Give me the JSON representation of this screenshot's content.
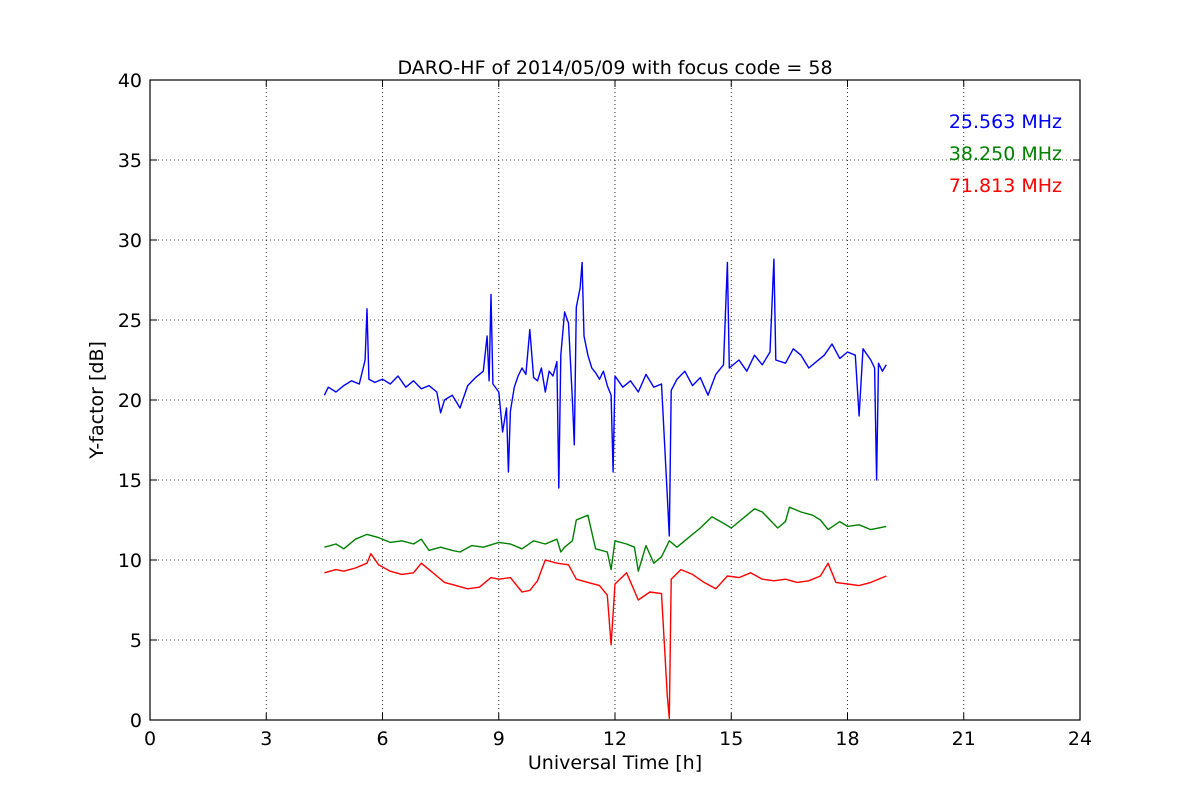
{
  "chart_data": {
    "type": "line",
    "title": "DARO-HF of 2014/05/09 with focus code = 58",
    "xlabel": "Universal Time [h]",
    "ylabel": "Y-factor [dB]",
    "xlim": [
      0,
      24
    ],
    "ylim": [
      0,
      40
    ],
    "xticks": [
      0,
      3,
      6,
      9,
      12,
      15,
      18,
      21,
      24
    ],
    "yticks": [
      0,
      5,
      10,
      15,
      20,
      25,
      30,
      35,
      40
    ],
    "grid": true,
    "legend_position": "top-right",
    "series": [
      {
        "name": "25.563 MHz",
        "color": "#0000ff",
        "points": [
          [
            4.5,
            20.3
          ],
          [
            4.6,
            20.8
          ],
          [
            4.8,
            20.5
          ],
          [
            5.0,
            20.9
          ],
          [
            5.2,
            21.2
          ],
          [
            5.4,
            21.0
          ],
          [
            5.55,
            22.5
          ],
          [
            5.6,
            25.7
          ],
          [
            5.65,
            21.3
          ],
          [
            5.8,
            21.1
          ],
          [
            6.0,
            21.3
          ],
          [
            6.2,
            21.0
          ],
          [
            6.4,
            21.5
          ],
          [
            6.6,
            20.8
          ],
          [
            6.8,
            21.2
          ],
          [
            7.0,
            20.7
          ],
          [
            7.2,
            20.9
          ],
          [
            7.4,
            20.5
          ],
          [
            7.5,
            19.2
          ],
          [
            7.6,
            20.0
          ],
          [
            7.8,
            20.3
          ],
          [
            8.0,
            19.5
          ],
          [
            8.2,
            20.9
          ],
          [
            8.4,
            21.4
          ],
          [
            8.6,
            21.8
          ],
          [
            8.7,
            24.0
          ],
          [
            8.75,
            21.2
          ],
          [
            8.8,
            26.6
          ],
          [
            8.85,
            21.0
          ],
          [
            9.0,
            20.5
          ],
          [
            9.1,
            18.0
          ],
          [
            9.2,
            19.5
          ],
          [
            9.25,
            15.5
          ],
          [
            9.3,
            19.3
          ],
          [
            9.4,
            20.8
          ],
          [
            9.5,
            21.5
          ],
          [
            9.6,
            22.0
          ],
          [
            9.7,
            21.6
          ],
          [
            9.8,
            24.4
          ],
          [
            9.9,
            21.4
          ],
          [
            10.0,
            21.2
          ],
          [
            10.1,
            22.0
          ],
          [
            10.2,
            20.5
          ],
          [
            10.3,
            21.8
          ],
          [
            10.4,
            21.5
          ],
          [
            10.5,
            22.4
          ],
          [
            10.55,
            14.5
          ],
          [
            10.6,
            22.8
          ],
          [
            10.7,
            25.5
          ],
          [
            10.8,
            24.8
          ],
          [
            10.9,
            20.0
          ],
          [
            10.95,
            17.2
          ],
          [
            11.0,
            25.8
          ],
          [
            11.1,
            27.0
          ],
          [
            11.15,
            28.6
          ],
          [
            11.2,
            24.0
          ],
          [
            11.3,
            22.8
          ],
          [
            11.4,
            22.0
          ],
          [
            11.5,
            21.7
          ],
          [
            11.6,
            21.3
          ],
          [
            11.7,
            21.8
          ],
          [
            11.8,
            20.9
          ],
          [
            11.9,
            20.3
          ],
          [
            11.95,
            15.5
          ],
          [
            12.0,
            21.5
          ],
          [
            12.2,
            20.8
          ],
          [
            12.4,
            21.2
          ],
          [
            12.6,
            20.5
          ],
          [
            12.8,
            21.6
          ],
          [
            13.0,
            20.8
          ],
          [
            13.2,
            21.0
          ],
          [
            13.35,
            14.0
          ],
          [
            13.4,
            11.5
          ],
          [
            13.45,
            20.6
          ],
          [
            13.6,
            21.3
          ],
          [
            13.8,
            21.8
          ],
          [
            14.0,
            20.9
          ],
          [
            14.2,
            21.4
          ],
          [
            14.4,
            20.3
          ],
          [
            14.6,
            21.6
          ],
          [
            14.8,
            22.2
          ],
          [
            14.9,
            28.6
          ],
          [
            14.95,
            22.0
          ],
          [
            15.2,
            22.5
          ],
          [
            15.4,
            21.8
          ],
          [
            15.6,
            22.8
          ],
          [
            15.8,
            22.2
          ],
          [
            16.0,
            23.0
          ],
          [
            16.1,
            28.8
          ],
          [
            16.15,
            22.5
          ],
          [
            16.4,
            22.3
          ],
          [
            16.6,
            23.2
          ],
          [
            16.8,
            22.8
          ],
          [
            17.0,
            22.0
          ],
          [
            17.2,
            22.4
          ],
          [
            17.4,
            22.8
          ],
          [
            17.6,
            23.5
          ],
          [
            17.8,
            22.6
          ],
          [
            18.0,
            23.0
          ],
          [
            18.2,
            22.8
          ],
          [
            18.3,
            19.0
          ],
          [
            18.4,
            23.2
          ],
          [
            18.6,
            22.5
          ],
          [
            18.7,
            22.0
          ],
          [
            18.75,
            15.0
          ],
          [
            18.8,
            22.3
          ],
          [
            18.9,
            21.8
          ],
          [
            19.0,
            22.2
          ]
        ]
      },
      {
        "name": "38.250 MHz",
        "color": "#008000",
        "points": [
          [
            4.5,
            10.8
          ],
          [
            4.8,
            11.0
          ],
          [
            5.0,
            10.7
          ],
          [
            5.3,
            11.3
          ],
          [
            5.6,
            11.6
          ],
          [
            5.9,
            11.4
          ],
          [
            6.2,
            11.1
          ],
          [
            6.5,
            11.2
          ],
          [
            6.8,
            11.0
          ],
          [
            7.0,
            11.3
          ],
          [
            7.2,
            10.6
          ],
          [
            7.5,
            10.8
          ],
          [
            7.8,
            10.6
          ],
          [
            8.0,
            10.5
          ],
          [
            8.3,
            10.9
          ],
          [
            8.6,
            10.8
          ],
          [
            9.0,
            11.1
          ],
          [
            9.3,
            11.0
          ],
          [
            9.6,
            10.7
          ],
          [
            9.9,
            11.2
          ],
          [
            10.2,
            11.0
          ],
          [
            10.5,
            11.3
          ],
          [
            10.6,
            10.5
          ],
          [
            10.7,
            10.8
          ],
          [
            10.9,
            11.2
          ],
          [
            11.0,
            12.5
          ],
          [
            11.3,
            12.8
          ],
          [
            11.5,
            10.7
          ],
          [
            11.8,
            10.5
          ],
          [
            11.9,
            9.4
          ],
          [
            12.0,
            11.2
          ],
          [
            12.3,
            11.0
          ],
          [
            12.5,
            10.8
          ],
          [
            12.6,
            9.3
          ],
          [
            12.8,
            10.9
          ],
          [
            13.0,
            9.8
          ],
          [
            13.2,
            10.2
          ],
          [
            13.4,
            11.2
          ],
          [
            13.6,
            10.8
          ],
          [
            13.9,
            11.4
          ],
          [
            14.2,
            12.0
          ],
          [
            14.5,
            12.7
          ],
          [
            14.8,
            12.3
          ],
          [
            15.0,
            12.0
          ],
          [
            15.3,
            12.6
          ],
          [
            15.6,
            13.2
          ],
          [
            15.8,
            13.0
          ],
          [
            16.0,
            12.5
          ],
          [
            16.2,
            12.0
          ],
          [
            16.4,
            12.4
          ],
          [
            16.5,
            13.3
          ],
          [
            16.8,
            13.0
          ],
          [
            17.1,
            12.8
          ],
          [
            17.3,
            12.5
          ],
          [
            17.5,
            11.9
          ],
          [
            17.8,
            12.4
          ],
          [
            18.0,
            12.1
          ],
          [
            18.3,
            12.2
          ],
          [
            18.6,
            11.9
          ],
          [
            19.0,
            12.1
          ]
        ]
      },
      {
        "name": "71.813 MHz",
        "color": "#ff0000",
        "points": [
          [
            4.5,
            9.2
          ],
          [
            4.8,
            9.4
          ],
          [
            5.0,
            9.3
          ],
          [
            5.3,
            9.5
          ],
          [
            5.6,
            9.8
          ],
          [
            5.7,
            10.4
          ],
          [
            5.9,
            9.7
          ],
          [
            6.2,
            9.3
          ],
          [
            6.5,
            9.1
          ],
          [
            6.8,
            9.2
          ],
          [
            7.0,
            9.8
          ],
          [
            7.2,
            9.4
          ],
          [
            7.4,
            9.0
          ],
          [
            7.6,
            8.6
          ],
          [
            7.9,
            8.4
          ],
          [
            8.2,
            8.2
          ],
          [
            8.5,
            8.3
          ],
          [
            8.8,
            8.9
          ],
          [
            9.0,
            8.8
          ],
          [
            9.3,
            8.9
          ],
          [
            9.6,
            8.0
          ],
          [
            9.8,
            8.1
          ],
          [
            10.0,
            8.7
          ],
          [
            10.2,
            10.0
          ],
          [
            10.5,
            9.8
          ],
          [
            10.8,
            9.7
          ],
          [
            11.0,
            8.8
          ],
          [
            11.3,
            8.6
          ],
          [
            11.6,
            8.4
          ],
          [
            11.8,
            7.8
          ],
          [
            11.9,
            4.7
          ],
          [
            12.0,
            8.5
          ],
          [
            12.3,
            9.2
          ],
          [
            12.6,
            7.5
          ],
          [
            12.9,
            8.0
          ],
          [
            13.2,
            7.9
          ],
          [
            13.35,
            1.5
          ],
          [
            13.4,
            0.1
          ],
          [
            13.45,
            8.8
          ],
          [
            13.7,
            9.4
          ],
          [
            14.0,
            9.1
          ],
          [
            14.3,
            8.6
          ],
          [
            14.6,
            8.2
          ],
          [
            14.9,
            9.0
          ],
          [
            15.2,
            8.9
          ],
          [
            15.5,
            9.2
          ],
          [
            15.8,
            8.8
          ],
          [
            16.1,
            8.7
          ],
          [
            16.4,
            8.8
          ],
          [
            16.7,
            8.6
          ],
          [
            17.0,
            8.7
          ],
          [
            17.3,
            9.0
          ],
          [
            17.5,
            9.8
          ],
          [
            17.7,
            8.6
          ],
          [
            18.0,
            8.5
          ],
          [
            18.3,
            8.4
          ],
          [
            18.6,
            8.6
          ],
          [
            19.0,
            9.0
          ]
        ]
      }
    ]
  }
}
